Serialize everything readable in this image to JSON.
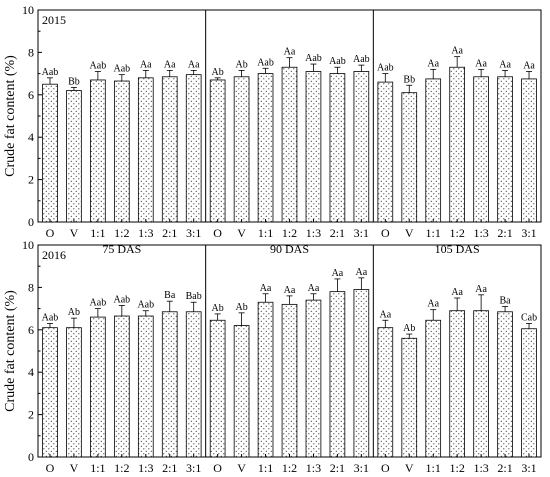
{
  "chart_data": [
    {
      "type": "bar",
      "year_label": "2015",
      "ylabel": "Crude fat content (%)",
      "ylim": [
        0,
        10
      ],
      "yticks": [
        0,
        2,
        4,
        6,
        8,
        10
      ],
      "grid": false,
      "categories": [
        "O",
        "V",
        "1:1",
        "1:2",
        "1:3",
        "2:1",
        "3:1"
      ],
      "groups": [
        {
          "label": "75 DAS",
          "values": [
            6.5,
            6.2,
            6.7,
            6.65,
            6.8,
            6.85,
            6.95
          ],
          "errors": [
            0.3,
            0.15,
            0.4,
            0.3,
            0.35,
            0.3,
            0.2
          ],
          "letters": [
            "Aab",
            "Bb",
            "Aab",
            "Aab",
            "Aa",
            "Aa",
            "Aa"
          ]
        },
        {
          "label": "90 DAS",
          "values": [
            6.7,
            6.85,
            7.0,
            7.3,
            7.1,
            7.0,
            7.1
          ],
          "errors": [
            0.1,
            0.3,
            0.25,
            0.45,
            0.35,
            0.3,
            0.3
          ],
          "letters": [
            "Ab",
            "Ab",
            "Aab",
            "Aa",
            "Aab",
            "Aab",
            "Aab"
          ]
        },
        {
          "label": "105 DAS",
          "values": [
            6.6,
            6.1,
            6.75,
            7.3,
            6.85,
            6.85,
            6.75
          ],
          "errors": [
            0.4,
            0.35,
            0.45,
            0.5,
            0.35,
            0.3,
            0.35
          ],
          "letters": [
            "Aab",
            "Bb",
            "Aa",
            "Aa",
            "Aa",
            "Aa",
            "Aa"
          ]
        }
      ]
    },
    {
      "type": "bar",
      "year_label": "2016",
      "ylabel": "Crude fat content (%)",
      "ylim": [
        0,
        10
      ],
      "yticks": [
        0,
        2,
        4,
        6,
        8,
        10
      ],
      "grid": false,
      "categories": [
        "O",
        "V",
        "1:1",
        "1:2",
        "1:3",
        "2:1",
        "3:1"
      ],
      "groups": [
        {
          "label": "75 DAS",
          "values": [
            6.1,
            6.1,
            6.6,
            6.65,
            6.65,
            6.85,
            6.85
          ],
          "errors": [
            0.2,
            0.45,
            0.4,
            0.5,
            0.25,
            0.5,
            0.45
          ],
          "letters": [
            "Aab",
            "Ab",
            "Aab",
            "Aab",
            "Aab",
            "Ba",
            "Bab"
          ]
        },
        {
          "label": "90 DAS",
          "values": [
            6.45,
            6.2,
            7.3,
            7.2,
            7.4,
            7.8,
            7.9
          ],
          "errors": [
            0.3,
            0.6,
            0.4,
            0.4,
            0.3,
            0.6,
            0.55
          ],
          "letters": [
            "Ab",
            "Ab",
            "Aa",
            "Aa",
            "Aa",
            "Aa",
            "Aa"
          ]
        },
        {
          "label": "105 DAS",
          "values": [
            6.1,
            5.6,
            6.45,
            6.9,
            6.9,
            6.85,
            6.05
          ],
          "errors": [
            0.35,
            0.2,
            0.5,
            0.6,
            0.75,
            0.25,
            0.25
          ],
          "letters": [
            "Aa",
            "Ab",
            "Aa",
            "Aa",
            "Aa",
            "Ba",
            "Cab"
          ]
        }
      ]
    }
  ]
}
